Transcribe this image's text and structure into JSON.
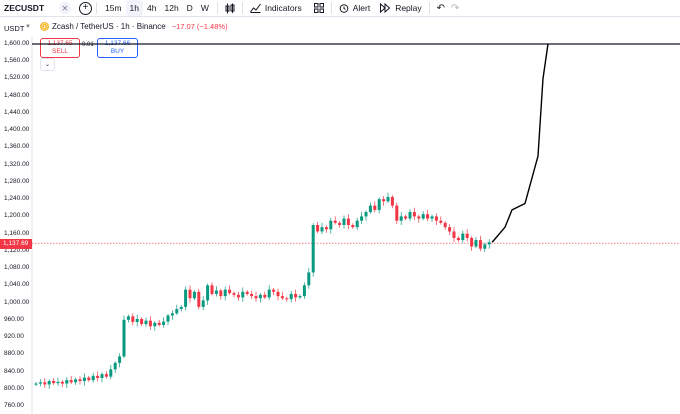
{
  "toolbar": {
    "symbol": "ZECUSDT",
    "intervals": [
      "15m",
      "1h",
      "4h",
      "12h",
      "D",
      "W"
    ],
    "active_interval": "1h",
    "indicators_label": "Indicators",
    "alert_label": "Alert",
    "replay_label": "Replay"
  },
  "legend": {
    "title": "Zcash / TetherUS · 1h · Binance",
    "change": "−17.07 (−1.48%)"
  },
  "trade": {
    "sell_price": "1,137.65",
    "sell_label": "SELL",
    "buy_price": "1,137.66",
    "buy_label": "BUY",
    "spread": "0.01"
  },
  "axis": {
    "currency": "USDT",
    "current_price": "1,137.69",
    "ticks": [
      "1,600.00",
      "1,560.00",
      "1,520.00",
      "1,480.00",
      "1,440.00",
      "1,400.00",
      "1,360.00",
      "1,320.00",
      "1,280.00",
      "1,240.00",
      "1,200.00",
      "1,160.00",
      "1,120.00",
      "1,080.00",
      "1,040.00",
      "1,000.00",
      "960.00",
      "920.00",
      "880.00",
      "840.00",
      "800.00",
      "760.00"
    ]
  },
  "colors": {
    "up": "#089981",
    "down": "#f23645",
    "drawing": "#000000",
    "accent": "#2962ff"
  },
  "chart_data": {
    "type": "candlestick",
    "ylim": [
      750,
      1620
    ],
    "horizontal_line": 1600,
    "current_price": 1137.69,
    "closes": [
      812,
      815,
      810,
      818,
      813,
      816,
      812,
      820,
      815,
      822,
      818,
      826,
      820,
      830,
      825,
      834,
      828,
      845,
      860,
      875,
      960,
      968,
      955,
      962,
      950,
      958,
      945,
      953,
      948,
      956,
      970,
      975,
      985,
      990,
      1030,
      1010,
      1025,
      990,
      1005,
      1040,
      1020,
      1028,
      1015,
      1030,
      1022,
      1018,
      1012,
      1025,
      1020,
      1015,
      1010,
      1018,
      1012,
      1030,
      1025,
      1015,
      1010,
      1008,
      1020,
      1012,
      1015,
      1040,
      1070,
      1180,
      1165,
      1175,
      1170,
      1190,
      1185,
      1180,
      1195,
      1180,
      1175,
      1190,
      1200,
      1210,
      1225,
      1215,
      1240,
      1235,
      1245,
      1225,
      1190,
      1200,
      1195,
      1210,
      1200,
      1195,
      1205,
      1195,
      1200,
      1190,
      1185,
      1175,
      1165,
      1150,
      1145,
      1160,
      1150,
      1130,
      1145,
      1125,
      1135,
      1140
    ],
    "projection": [
      [
        1140,
        1140
      ],
      [
        1155,
        1175
      ],
      [
        1170,
        1215
      ],
      [
        1195,
        1230
      ],
      [
        1220,
        1340
      ],
      [
        1460,
        1520
      ],
      [
        1600,
        1600
      ]
    ]
  }
}
